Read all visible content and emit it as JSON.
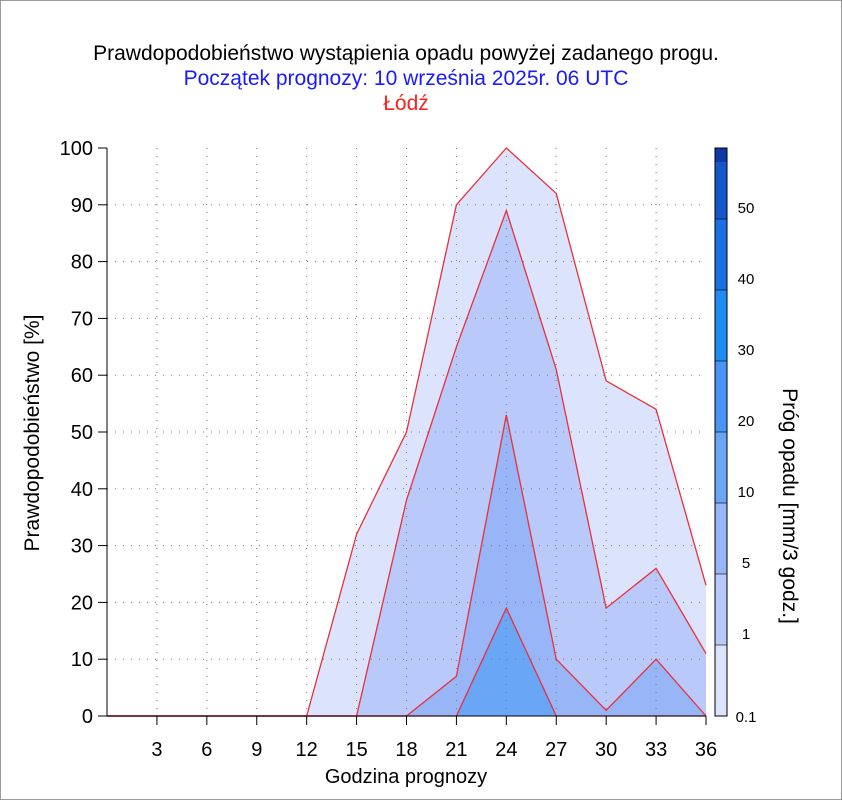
{
  "chart_data": {
    "type": "area",
    "title": "Prawdopodobieństwo wystąpienia opadu powyżej zadanego progu.",
    "subtitle": "Początek prognozy: 10 września 2025r. 06 UTC",
    "location": "Łódź",
    "xlabel": "Godzina prognozy",
    "ylabel": "Prawdopodobieństwo [%]",
    "colorbar_label": "Próg opadu [mm/3 godz.]",
    "xlim": [
      0,
      36
    ],
    "ylim": [
      0,
      100
    ],
    "x_ticks": [
      3,
      6,
      9,
      12,
      15,
      18,
      21,
      24,
      27,
      30,
      33,
      36
    ],
    "y_ticks": [
      0,
      10,
      20,
      30,
      40,
      50,
      60,
      70,
      80,
      90,
      100
    ],
    "grid": true,
    "x": [
      0,
      3,
      6,
      9,
      12,
      15,
      18,
      21,
      24,
      27,
      30,
      33,
      36
    ],
    "series": [
      {
        "name": "0.1",
        "color": "#dce3fc",
        "values": [
          0,
          0,
          0,
          0,
          0,
          32,
          50,
          90,
          100,
          92,
          59,
          54,
          23
        ]
      },
      {
        "name": "1",
        "color": "#b9c9fa",
        "values": [
          0,
          0,
          0,
          0,
          0,
          0,
          38,
          65,
          89,
          61,
          19,
          26,
          11
        ]
      },
      {
        "name": "5",
        "color": "#97b5f7",
        "values": [
          0,
          0,
          0,
          0,
          0,
          0,
          0,
          7,
          53,
          10,
          1,
          10,
          0
        ]
      },
      {
        "name": "10",
        "color": "#6aa6f6",
        "values": [
          0,
          0,
          0,
          0,
          0,
          0,
          0,
          0,
          19,
          0,
          0,
          0,
          0
        ]
      }
    ],
    "colorbar": {
      "labels": [
        "0.1",
        "1",
        "5",
        "10",
        "20",
        "30",
        "40",
        "50"
      ],
      "colors": [
        "#dce3fc",
        "#b9c9fa",
        "#97b5f7",
        "#6aa6f6",
        "#4a94f5",
        "#1f8cf2",
        "#1a6fe2",
        "#1657cc",
        "#0f3aa6"
      ]
    }
  }
}
